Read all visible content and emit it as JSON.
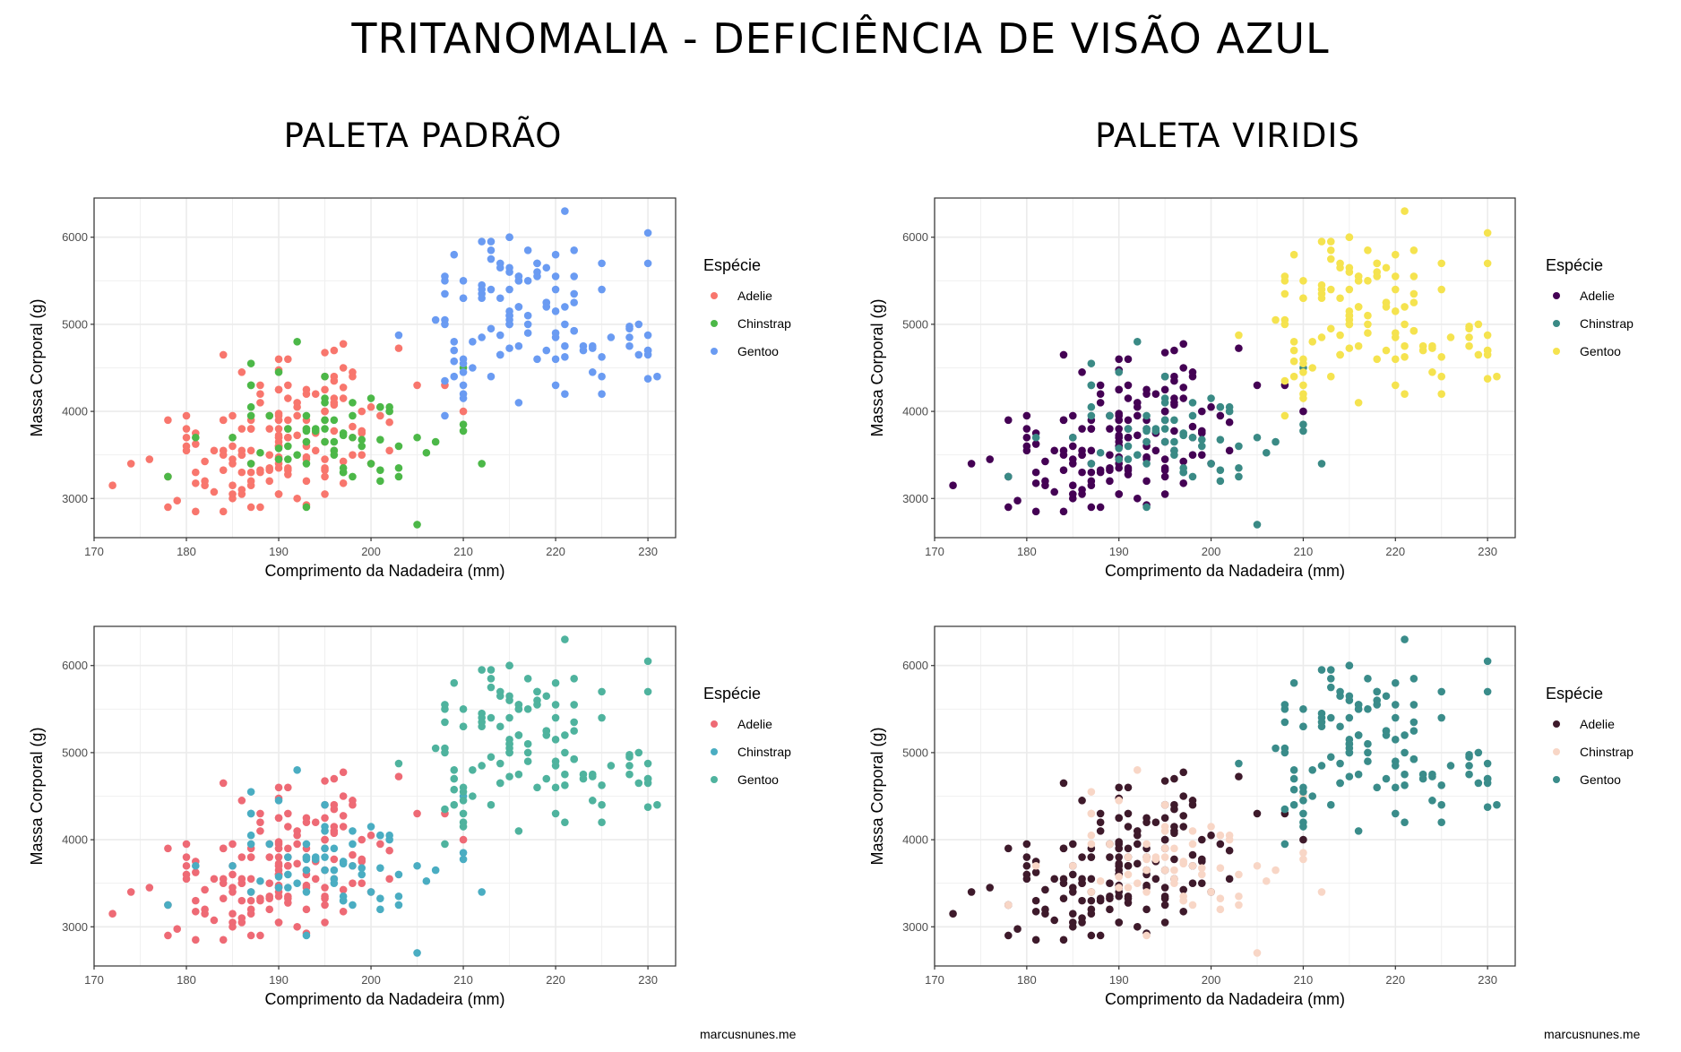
{
  "title": "TRITANOMALIA - DEFICIÊNCIA DE VISÃO AZUL",
  "column_titles": [
    "PALETA PADRÃO",
    "PALETA VIRIDIS"
  ],
  "watermark": "marcusnunes.me",
  "chart_data": [
    {
      "id": "top-left",
      "type": "scatter",
      "title": "",
      "xlabel": "Comprimento da Nadadeira (mm)",
      "ylabel": "Massa Corporal (g)",
      "xlim": [
        170,
        233
      ],
      "ylim": [
        2550,
        6450
      ],
      "xticks": [
        170,
        180,
        190,
        200,
        210,
        220,
        230
      ],
      "yticks": [
        3000,
        4000,
        5000,
        6000
      ],
      "grid": true,
      "legend_title": "Espécie",
      "legend_position": "right",
      "legend": [
        {
          "name": "Adelie",
          "color": "#F8766D"
        },
        {
          "name": "Chinstrap",
          "color": "#4CB848"
        },
        {
          "name": "Gentoo",
          "color": "#6A9BF2"
        }
      ]
    },
    {
      "id": "top-right",
      "type": "scatter",
      "title": "",
      "xlabel": "Comprimento da Nadadeira (mm)",
      "ylabel": "Massa Corporal (g)",
      "xlim": [
        170,
        233
      ],
      "ylim": [
        2550,
        6450
      ],
      "xticks": [
        170,
        180,
        190,
        200,
        210,
        220,
        230
      ],
      "yticks": [
        3000,
        4000,
        5000,
        6000
      ],
      "grid": true,
      "legend_title": "Espécie",
      "legend_position": "right",
      "legend": [
        {
          "name": "Adelie",
          "color": "#440154"
        },
        {
          "name": "Chinstrap",
          "color": "#3A8A85"
        },
        {
          "name": "Gentoo",
          "color": "#F5E34F"
        }
      ]
    },
    {
      "id": "bottom-left",
      "type": "scatter",
      "title": "",
      "xlabel": "Comprimento da Nadadeira (mm)",
      "ylabel": "Massa Corporal (g)",
      "xlim": [
        170,
        233
      ],
      "ylim": [
        2550,
        6450
      ],
      "xticks": [
        170,
        180,
        190,
        200,
        210,
        220,
        230
      ],
      "yticks": [
        3000,
        4000,
        5000,
        6000
      ],
      "grid": true,
      "legend_title": "Espécie",
      "legend_position": "right",
      "legend": [
        {
          "name": "Adelie",
          "color": "#EE6A75"
        },
        {
          "name": "Chinstrap",
          "color": "#4AADC2"
        },
        {
          "name": "Gentoo",
          "color": "#4FB39E"
        }
      ]
    },
    {
      "id": "bottom-right",
      "type": "scatter",
      "title": "",
      "xlabel": "Comprimento da Nadadeira (mm)",
      "ylabel": "Massa Corporal (g)",
      "xlim": [
        170,
        233
      ],
      "ylim": [
        2550,
        6450
      ],
      "xticks": [
        170,
        180,
        190,
        200,
        210,
        220,
        230
      ],
      "yticks": [
        3000,
        4000,
        5000,
        6000
      ],
      "grid": true,
      "legend_title": "Espécie",
      "legend_position": "right",
      "legend": [
        {
          "name": "Adelie",
          "color": "#3E1A2B"
        },
        {
          "name": "Chinstrap",
          "color": "#F8D6C6"
        },
        {
          "name": "Gentoo",
          "color": "#3A8C8A"
        }
      ]
    }
  ],
  "points": {
    "Adelie": [
      [
        181,
        3750
      ],
      [
        186,
        3800
      ],
      [
        195,
        3250
      ],
      [
        193,
        3450
      ],
      [
        190,
        3650
      ],
      [
        181,
        3625
      ],
      [
        195,
        4675
      ],
      [
        193,
        3475
      ],
      [
        190,
        4250
      ],
      [
        186,
        3300
      ],
      [
        180,
        3700
      ],
      [
        182,
        3200
      ],
      [
        191,
        3800
      ],
      [
        198,
        4400
      ],
      [
        185,
        3700
      ],
      [
        195,
        3450
      ],
      [
        197,
        4500
      ],
      [
        184,
        3325
      ],
      [
        194,
        4200
      ],
      [
        174,
        3400
      ],
      [
        180,
        3600
      ],
      [
        189,
        3800
      ],
      [
        185,
        3950
      ],
      [
        180,
        3800
      ],
      [
        187,
        3800
      ],
      [
        183,
        3550
      ],
      [
        187,
        3200
      ],
      [
        172,
        3150
      ],
      [
        180,
        3950
      ],
      [
        178,
        3250
      ],
      [
        178,
        3900
      ],
      [
        188,
        3300
      ],
      [
        184,
        3900
      ],
      [
        195,
        3325
      ],
      [
        196,
        4150
      ],
      [
        190,
        3950
      ],
      [
        180,
        3550
      ],
      [
        181,
        3300
      ],
      [
        184,
        4650
      ],
      [
        182,
        3150
      ],
      [
        195,
        3900
      ],
      [
        186,
        3100
      ],
      [
        196,
        4400
      ],
      [
        185,
        3000
      ],
      [
        190,
        4600
      ],
      [
        182,
        3425
      ],
      [
        179,
        2975
      ],
      [
        190,
        3450
      ],
      [
        191,
        4150
      ],
      [
        186,
        3500
      ],
      [
        188,
        4300
      ],
      [
        190,
        3450
      ],
      [
        200,
        4050
      ],
      [
        187,
        2900
      ],
      [
        191,
        3700
      ],
      [
        186,
        3550
      ],
      [
        193,
        3800
      ],
      [
        181,
        2850
      ],
      [
        194,
        3750
      ],
      [
        185,
        3150
      ],
      [
        195,
        4400
      ],
      [
        185,
        3600
      ],
      [
        192,
        4050
      ],
      [
        184,
        2850
      ],
      [
        192,
        3950
      ],
      [
        195,
        3350
      ],
      [
        188,
        4100
      ],
      [
        190,
        3050
      ],
      [
        198,
        4450
      ],
      [
        190,
        3600
      ],
      [
        190,
        3900
      ],
      [
        196,
        3550
      ],
      [
        197,
        4150
      ],
      [
        190,
        3700
      ],
      [
        195,
        4250
      ],
      [
        191,
        3700
      ],
      [
        184,
        3900
      ],
      [
        187,
        3550
      ],
      [
        195,
        4000
      ],
      [
        189,
        3200
      ],
      [
        196,
        4700
      ],
      [
        187,
        3800
      ],
      [
        193,
        4200
      ],
      [
        191,
        3350
      ],
      [
        194,
        3550
      ],
      [
        190,
        3800
      ],
      [
        189,
        3500
      ],
      [
        189,
        3950
      ],
      [
        190,
        3600
      ],
      [
        202,
        3550
      ],
      [
        205,
        4300
      ],
      [
        185,
        3400
      ],
      [
        186,
        4450
      ],
      [
        187,
        3300
      ],
      [
        208,
        4300
      ],
      [
        190,
        3700
      ],
      [
        196,
        4350
      ],
      [
        178,
        2900
      ],
      [
        192,
        4100
      ],
      [
        192,
        3725
      ],
      [
        203,
        4725
      ],
      [
        183,
        3075
      ],
      [
        190,
        4250
      ],
      [
        193,
        2925
      ],
      [
        184,
        3550
      ],
      [
        199,
        3750
      ],
      [
        190,
        3900
      ],
      [
        181,
        3175
      ],
      [
        197,
        4775
      ],
      [
        198,
        3825
      ],
      [
        191,
        4600
      ],
      [
        193,
        3200
      ],
      [
        197,
        4275
      ],
      [
        191,
        3900
      ],
      [
        196,
        4075
      ],
      [
        188,
        2900
      ],
      [
        199,
        3775
      ],
      [
        189,
        3350
      ],
      [
        189,
        3325
      ],
      [
        187,
        3150
      ],
      [
        198,
        3500
      ],
      [
        176,
        3450
      ],
      [
        202,
        3875
      ],
      [
        186,
        3050
      ],
      [
        199,
        4000
      ],
      [
        191,
        3275
      ],
      [
        191,
        4300
      ],
      [
        190,
        3050
      ],
      [
        195,
        4000
      ],
      [
        191,
        3325
      ],
      [
        184,
        3500
      ],
      [
        199,
        3500
      ],
      [
        190,
        4475
      ],
      [
        197,
        3425
      ],
      [
        193,
        3900
      ],
      [
        197,
        3175
      ],
      [
        190,
        3975
      ],
      [
        200,
        3400
      ],
      [
        193,
        4250
      ],
      [
        187,
        3400
      ],
      [
        190,
        3475
      ],
      [
        185,
        3050
      ],
      [
        190,
        3600
      ],
      [
        193,
        3650
      ],
      [
        187,
        3900
      ],
      [
        190,
        3400
      ],
      [
        195,
        3650
      ],
      [
        192,
        3000
      ],
      [
        196,
        4100
      ],
      [
        196,
        3775
      ],
      [
        188,
        3325
      ],
      [
        198,
        3700
      ],
      [
        201,
        3950
      ],
      [
        191,
        3700
      ],
      [
        193,
        3600
      ],
      [
        188,
        4200
      ],
      [
        190,
        3350
      ],
      [
        210,
        4000
      ],
      [
        186,
        3500
      ],
      [
        190,
        3725
      ],
      [
        195,
        3050
      ],
      [
        185,
        3450
      ]
    ],
    "Chinstrap": [
      [
        192,
        3500
      ],
      [
        196,
        3900
      ],
      [
        193,
        3650
      ],
      [
        188,
        3525
      ],
      [
        197,
        3725
      ],
      [
        198,
        3950
      ],
      [
        178,
        3250
      ],
      [
        197,
        3750
      ],
      [
        195,
        4150
      ],
      [
        198,
        3700
      ],
      [
        193,
        3800
      ],
      [
        194,
        3775
      ],
      [
        185,
        3700
      ],
      [
        201,
        4050
      ],
      [
        190,
        3575
      ],
      [
        201,
        4050
      ],
      [
        197,
        3300
      ],
      [
        181,
        3700
      ],
      [
        190,
        3450
      ],
      [
        195,
        4400
      ],
      [
        191,
        3600
      ],
      [
        187,
        3400
      ],
      [
        193,
        2900
      ],
      [
        195,
        3800
      ],
      [
        197,
        3300
      ],
      [
        200,
        4150
      ],
      [
        200,
        3400
      ],
      [
        191,
        3800
      ],
      [
        205,
        3700
      ],
      [
        187,
        4550
      ],
      [
        201,
        3200
      ],
      [
        187,
        4300
      ],
      [
        203,
        3350
      ],
      [
        195,
        4100
      ],
      [
        199,
        3600
      ],
      [
        195,
        3900
      ],
      [
        210,
        3850
      ],
      [
        192,
        4800
      ],
      [
        205,
        2700
      ],
      [
        210,
        4500
      ],
      [
        187,
        3950
      ],
      [
        196,
        3650
      ],
      [
        196,
        3550
      ],
      [
        196,
        3500
      ],
      [
        201,
        3675
      ],
      [
        190,
        4450
      ],
      [
        212,
        3400
      ],
      [
        187,
        4300
      ],
      [
        198,
        3250
      ],
      [
        199,
        3675
      ],
      [
        201,
        3325
      ],
      [
        193,
        3950
      ],
      [
        203,
        3600
      ],
      [
        187,
        4050
      ],
      [
        197,
        3350
      ],
      [
        191,
        3450
      ],
      [
        203,
        3250
      ],
      [
        202,
        4050
      ],
      [
        194,
        3800
      ],
      [
        206,
        3525
      ],
      [
        189,
        3950
      ],
      [
        195,
        3650
      ],
      [
        207,
        3650
      ],
      [
        202,
        4000
      ],
      [
        193,
        3400
      ],
      [
        210,
        3775
      ],
      [
        198,
        4100
      ],
      [
        193,
        3775
      ]
    ],
    "Gentoo": [
      [
        211,
        4500
      ],
      [
        230,
        5700
      ],
      [
        210,
        4450
      ],
      [
        218,
        5700
      ],
      [
        215,
        5400
      ],
      [
        210,
        4550
      ],
      [
        211,
        4800
      ],
      [
        219,
        5200
      ],
      [
        209,
        4400
      ],
      [
        215,
        5150
      ],
      [
        214,
        4650
      ],
      [
        216,
        5550
      ],
      [
        214,
        4650
      ],
      [
        213,
        5850
      ],
      [
        210,
        4200
      ],
      [
        217,
        5850
      ],
      [
        210,
        4150
      ],
      [
        221,
        6300
      ],
      [
        209,
        4800
      ],
      [
        222,
        5350
      ],
      [
        218,
        5700
      ],
      [
        215,
        5000
      ],
      [
        213,
        4400
      ],
      [
        215,
        5050
      ],
      [
        215,
        5000
      ],
      [
        215,
        5100
      ],
      [
        216,
        4100
      ],
      [
        215,
        5650
      ],
      [
        210,
        4600
      ],
      [
        220,
        5550
      ],
      [
        222,
        5250
      ],
      [
        209,
        4700
      ],
      [
        207,
        5050
      ],
      [
        230,
        6050
      ],
      [
        220,
        5150
      ],
      [
        220,
        5400
      ],
      [
        213,
        4950
      ],
      [
        219,
        5250
      ],
      [
        208,
        4350
      ],
      [
        208,
        5350
      ],
      [
        208,
        3950
      ],
      [
        225,
        5700
      ],
      [
        210,
        4300
      ],
      [
        216,
        4750
      ],
      [
        222,
        5550
      ],
      [
        217,
        4900
      ],
      [
        225,
        4200
      ],
      [
        213,
        5400
      ],
      [
        215,
        5100
      ],
      [
        210,
        5300
      ],
      [
        220,
        4850
      ],
      [
        210,
        5300
      ],
      [
        225,
        4400
      ],
      [
        217,
        5000
      ],
      [
        220,
        4900
      ],
      [
        208,
        5050
      ],
      [
        220,
        4300
      ],
      [
        208,
        5000
      ],
      [
        224,
        4450
      ],
      [
        208,
        5550
      ],
      [
        221,
        4200
      ],
      [
        214,
        5300
      ],
      [
        231,
        4400
      ],
      [
        219,
        5650
      ],
      [
        230,
        4700
      ],
      [
        214,
        5700
      ],
      [
        229,
        4650
      ],
      [
        220,
        5800
      ],
      [
        223,
        4700
      ],
      [
        216,
        5550
      ],
      [
        221,
        4750
      ],
      [
        221,
        5000
      ],
      [
        217,
        5100
      ],
      [
        216,
        5200
      ],
      [
        230,
        4700
      ],
      [
        209,
        5800
      ],
      [
        220,
        4600
      ],
      [
        215,
        6000
      ],
      [
        223,
        4750
      ],
      [
        212,
        5950
      ],
      [
        221,
        4625
      ],
      [
        212,
        5450
      ],
      [
        224,
        4725
      ],
      [
        212,
        5350
      ],
      [
        228,
        4750
      ],
      [
        218,
        5600
      ],
      [
        218,
        4600
      ],
      [
        212,
        5300
      ],
      [
        230,
        4875
      ],
      [
        218,
        5550
      ],
      [
        228,
        4950
      ],
      [
        212,
        5400
      ],
      [
        224,
        4750
      ],
      [
        214,
        5650
      ],
      [
        226,
        4850
      ],
      [
        216,
        5200
      ],
      [
        222,
        4925
      ],
      [
        203,
        4875
      ],
      [
        225,
        4625
      ],
      [
        219,
        5250
      ],
      [
        228,
        4850
      ],
      [
        215,
        5600
      ],
      [
        228,
        4975
      ],
      [
        216,
        5500
      ],
      [
        215,
        4725
      ],
      [
        210,
        5500
      ],
      [
        219,
        4700
      ],
      [
        208,
        5500
      ],
      [
        209,
        4575
      ],
      [
        216,
        5500
      ],
      [
        229,
        5000
      ],
      [
        213,
        5950
      ],
      [
        230,
        4650
      ],
      [
        217,
        5500
      ],
      [
        230,
        4375
      ],
      [
        222,
        5850
      ],
      [
        214,
        4875
      ],
      [
        215,
        6000
      ],
      [
        222,
        4925
      ],
      [
        212,
        4850
      ],
      [
        213,
        5750
      ],
      [
        221,
        5200
      ],
      [
        225,
        5400
      ]
    ]
  }
}
